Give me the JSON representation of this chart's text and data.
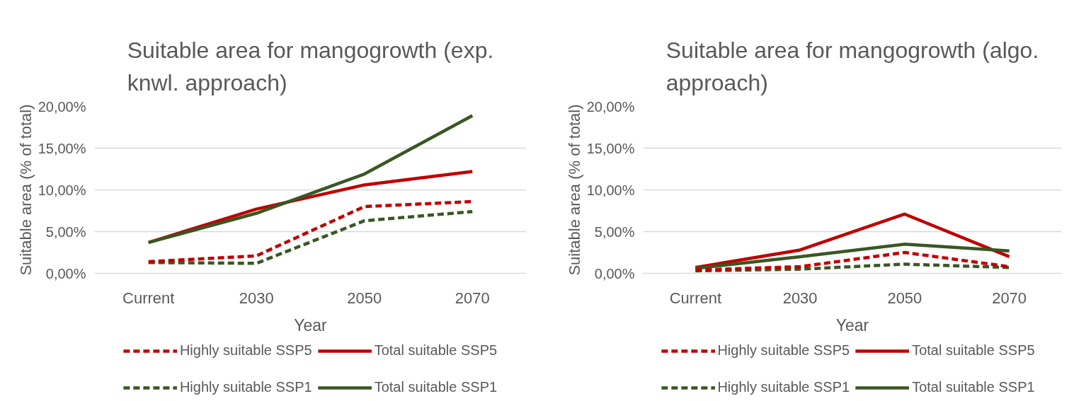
{
  "chart_data": [
    {
      "type": "line",
      "title": "Suitable area for mangogrowth (exp. knwl. approach)",
      "xlabel": "Year",
      "ylabel": "Suitable area (% of total)",
      "categories": [
        "Current",
        "2030",
        "2050",
        "2070"
      ],
      "ylim": [
        0,
        20
      ],
      "yticks": [
        {
          "value": 0,
          "label": "0,00%"
        },
        {
          "value": 5,
          "label": "5,00%"
        },
        {
          "value": 10,
          "label": "10,00%"
        },
        {
          "value": 15,
          "label": "15,00%"
        },
        {
          "value": 20,
          "label": "20,00%"
        }
      ],
      "grid": "y",
      "legend": "bottom",
      "marker": "none",
      "series": [
        {
          "name": "Highly suitable SSP5",
          "color": "#c00000",
          "line_style": "dashed",
          "values": [
            1.4,
            2.1,
            8.0,
            8.6
          ]
        },
        {
          "name": "Total suitable SSP5",
          "color": "#c00000",
          "line_style": "solid",
          "values": [
            3.7,
            7.7,
            10.6,
            12.2
          ]
        },
        {
          "name": "Highly suitable SSP1",
          "color": "#385723",
          "line_style": "dashed",
          "values": [
            1.3,
            1.2,
            6.3,
            7.4
          ]
        },
        {
          "name": "Total suitable SSP1",
          "color": "#385723",
          "line_style": "solid",
          "values": [
            3.7,
            7.2,
            11.9,
            18.9
          ]
        }
      ]
    },
    {
      "type": "line",
      "title": "Suitable area for mangogrowth (algo. approach)",
      "xlabel": "Year",
      "ylabel": "Suitable area (% of total)",
      "categories": [
        "Current",
        "2030",
        "2050",
        "2070"
      ],
      "ylim": [
        0,
        20
      ],
      "yticks": [
        {
          "value": 0,
          "label": "0,00%"
        },
        {
          "value": 5,
          "label": "5,00%"
        },
        {
          "value": 10,
          "label": "10,00%"
        },
        {
          "value": 15,
          "label": "15,00%"
        },
        {
          "value": 20,
          "label": "20,00%"
        }
      ],
      "grid": "y",
      "legend": "bottom",
      "marker": "none",
      "series": [
        {
          "name": "Highly suitable SSP5",
          "color": "#c00000",
          "line_style": "dashed",
          "values": [
            0.4,
            0.8,
            2.5,
            0.8
          ]
        },
        {
          "name": "Total suitable SSP5",
          "color": "#c00000",
          "line_style": "solid",
          "values": [
            0.7,
            2.8,
            7.1,
            2.0
          ]
        },
        {
          "name": "Highly suitable SSP1",
          "color": "#385723",
          "line_style": "dashed",
          "values": [
            0.3,
            0.5,
            1.1,
            0.7
          ]
        },
        {
          "name": "Total suitable SSP1",
          "color": "#385723",
          "line_style": "solid",
          "values": [
            0.6,
            2.0,
            3.5,
            2.7
          ]
        }
      ]
    }
  ]
}
